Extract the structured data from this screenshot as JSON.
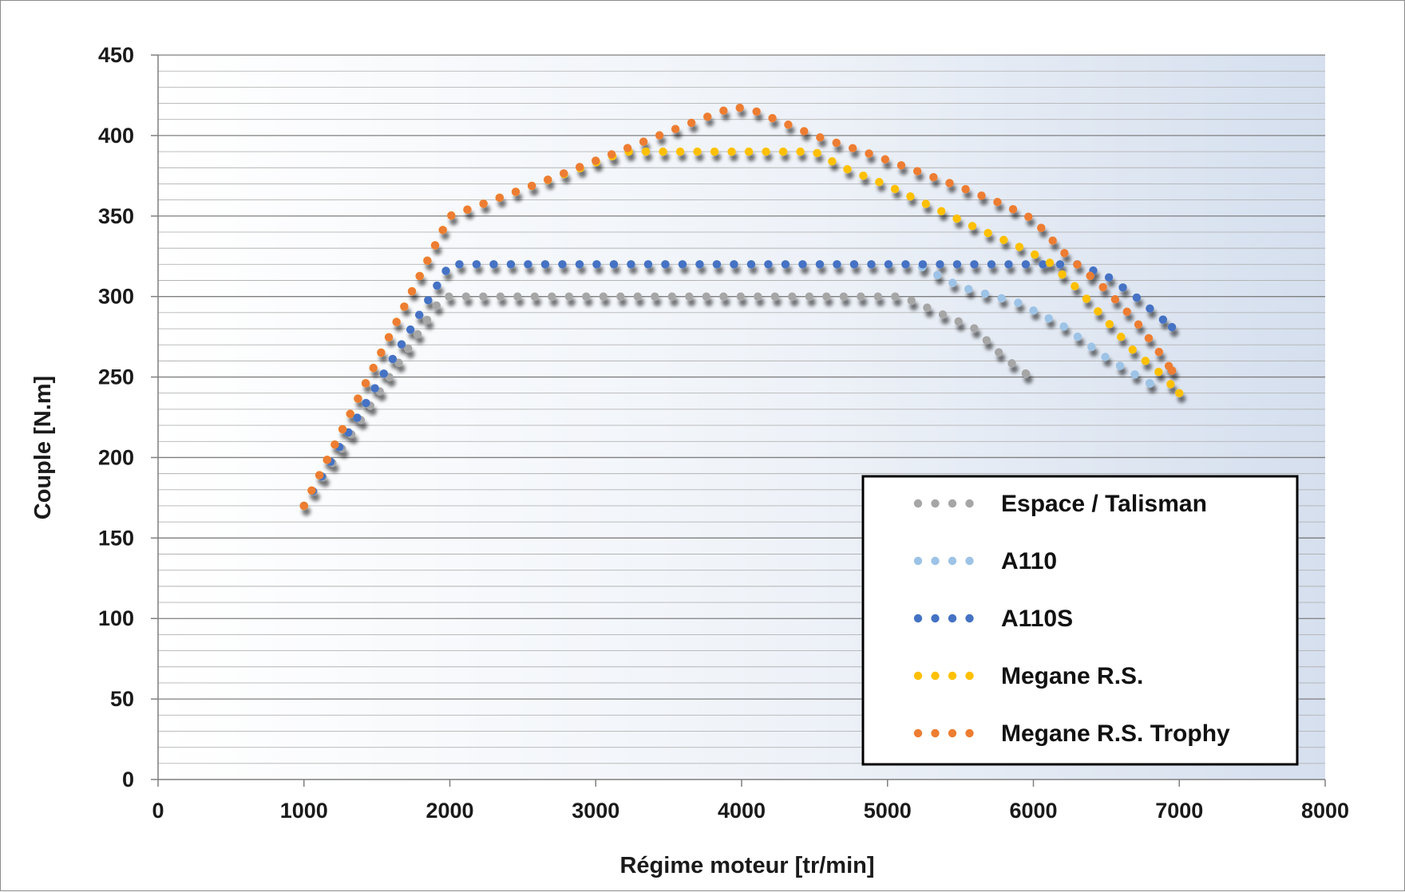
{
  "chart_data": {
    "type": "scatter",
    "xlabel": "Régime moteur [tr/min]",
    "ylabel": "Couple [N.m]",
    "xlim": [
      0,
      8000
    ],
    "ylim": [
      0,
      450
    ],
    "x_ticks": [
      0,
      1000,
      2000,
      3000,
      4000,
      5000,
      6000,
      7000,
      8000
    ],
    "y_ticks": [
      0,
      50,
      100,
      150,
      200,
      250,
      300,
      350,
      400,
      450
    ],
    "x_tick_labels": [
      "0",
      "1000",
      "2000",
      "3000",
      "4000",
      "5000",
      "6000",
      "7000",
      "8000"
    ],
    "y_tick_labels": [
      "0",
      "50",
      "100",
      "150",
      "200",
      "250",
      "300",
      "350",
      "400",
      "450"
    ],
    "grid": true,
    "legend_position": "bottom-right",
    "series": [
      {
        "name": "Espace / Talisman",
        "color": "#a6a6a6",
        "points": [
          [
            1000,
            170
          ],
          [
            1950,
            300
          ],
          [
            5100,
            300
          ],
          [
            5300,
            292
          ],
          [
            5600,
            280
          ],
          [
            5800,
            262
          ],
          [
            5950,
            252
          ]
        ]
      },
      {
        "name": "A110",
        "color": "#9dc3e6",
        "points": [
          [
            1000,
            170
          ],
          [
            2000,
            320
          ],
          [
            5200,
            320
          ],
          [
            5500,
            306
          ],
          [
            5900,
            296
          ],
          [
            6200,
            282
          ],
          [
            6500,
            262
          ],
          [
            6800,
            246
          ]
        ]
      },
      {
        "name": "A110S",
        "color": "#4472c4",
        "points": [
          [
            1000,
            170
          ],
          [
            2000,
            320
          ],
          [
            6300,
            320
          ],
          [
            6500,
            313
          ],
          [
            6700,
            300
          ],
          [
            6950,
            281
          ]
        ]
      },
      {
        "name": "Megane R.S.",
        "color": "#ffc000",
        "points": [
          [
            1000,
            170
          ],
          [
            2000,
            350
          ],
          [
            2600,
            370
          ],
          [
            3200,
            390
          ],
          [
            4500,
            390
          ],
          [
            4700,
            380
          ],
          [
            5000,
            369
          ],
          [
            5300,
            356
          ],
          [
            5600,
            343
          ],
          [
            5900,
            331
          ],
          [
            6100,
            322
          ],
          [
            6300,
            305
          ],
          [
            6500,
            285
          ],
          [
            6700,
            265
          ],
          [
            6850,
            254
          ],
          [
            7000,
            240
          ]
        ]
      },
      {
        "name": "Megane R.S. Trophy",
        "color": "#ed7d31",
        "points": [
          [
            1000,
            170
          ],
          [
            2000,
            350
          ],
          [
            2600,
            370
          ],
          [
            3100,
            388
          ],
          [
            3600,
            406
          ],
          [
            3950,
            418
          ],
          [
            4100,
            415
          ],
          [
            4500,
            400
          ],
          [
            4900,
            388
          ],
          [
            5200,
            378
          ],
          [
            5500,
            368
          ],
          [
            5800,
            357
          ],
          [
            6000,
            348
          ],
          [
            6200,
            328
          ],
          [
            6500,
            304
          ],
          [
            6700,
            285
          ],
          [
            6850,
            267
          ],
          [
            6950,
            254
          ]
        ]
      }
    ]
  }
}
